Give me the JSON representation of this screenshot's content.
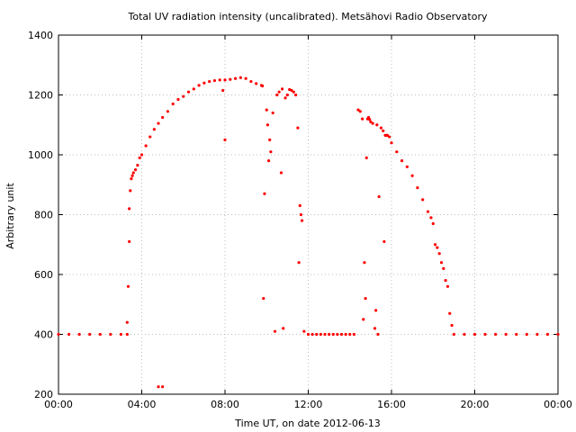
{
  "chart_data": {
    "type": "scatter",
    "title": "Total UV radiation intensity (uncalibrated). Metsähovi Radio Observatory",
    "xlabel": "Time UT, on date 2012-06-13",
    "ylabel": "Arbitrary unit",
    "xlim": [
      0,
      24
    ],
    "ylim": [
      200,
      1400
    ],
    "x_ticks": [
      0,
      4,
      8,
      12,
      16,
      20,
      24
    ],
    "x_tick_labels": [
      "00:00",
      "04:00",
      "08:00",
      "12:00",
      "16:00",
      "20:00",
      "00:00"
    ],
    "y_ticks": [
      200,
      400,
      600,
      800,
      1000,
      1200,
      1400
    ],
    "y_tick_labels": [
      "200",
      "400",
      "600",
      "800",
      "1000",
      "1200",
      "1400"
    ],
    "grid": true,
    "marker_color": "#ff0000",
    "series": [
      {
        "x": [
          0.0,
          0.5,
          1.0,
          1.5,
          2.0,
          2.5,
          3.0,
          3.3,
          3.35,
          3.4,
          3.45,
          3.5,
          3.55,
          3.6,
          3.7,
          3.8,
          3.9,
          4.0,
          4.2,
          4.4,
          4.6,
          4.8,
          5.0,
          5.25,
          5.5,
          5.75,
          6.0,
          6.25,
          6.5,
          6.75,
          7.0,
          7.25,
          7.5,
          7.75,
          8.0,
          8.25,
          8.5,
          8.75,
          9.0,
          9.25,
          9.5,
          9.75,
          9.8,
          9.85,
          9.9,
          10.0,
          10.05,
          10.1,
          10.15,
          10.2,
          10.3,
          10.4,
          10.5,
          10.6,
          10.7,
          10.75,
          10.8,
          10.9,
          11.0,
          11.1,
          11.2,
          11.3,
          11.4,
          11.5,
          11.55,
          11.6,
          11.65,
          11.7,
          11.8,
          12.0,
          12.2,
          12.4,
          12.6,
          12.8,
          13.0,
          13.2,
          13.4,
          13.6,
          13.8,
          14.0,
          14.2,
          14.4,
          14.5,
          14.6,
          14.65,
          14.7,
          14.75,
          14.8,
          14.85,
          14.9,
          14.95,
          15.0,
          15.1,
          15.2,
          15.25,
          15.3,
          15.35,
          15.4,
          15.5,
          15.6,
          15.65,
          15.7,
          15.75,
          15.8,
          15.9,
          16.0,
          16.25,
          16.5,
          16.75,
          17.0,
          17.25,
          17.5,
          17.75,
          17.9,
          18.0,
          18.1,
          18.2,
          18.3,
          18.4,
          18.5,
          18.6,
          18.7,
          18.8,
          18.9,
          19.0,
          19.5,
          20.0,
          20.5,
          21.0,
          21.5,
          22.0,
          22.5,
          23.0,
          23.5,
          24.0,
          4.8,
          5.0,
          8.0,
          7.9,
          3.4,
          3.3
        ],
        "y": [
          400,
          400,
          400,
          400,
          400,
          400,
          400,
          400,
          560,
          820,
          880,
          920,
          930,
          940,
          950,
          965,
          990,
          1000,
          1030,
          1060,
          1085,
          1105,
          1125,
          1145,
          1170,
          1185,
          1195,
          1210,
          1220,
          1232,
          1240,
          1245,
          1248,
          1250,
          1250,
          1252,
          1255,
          1258,
          1255,
          1245,
          1238,
          1232,
          1230,
          520,
          870,
          1150,
          1100,
          980,
          1050,
          1010,
          1140,
          410,
          1200,
          1210,
          940,
          1220,
          420,
          1190,
          1200,
          1218,
          1215,
          1210,
          1200,
          1090,
          640,
          830,
          800,
          780,
          410,
          400,
          400,
          400,
          400,
          400,
          400,
          400,
          400,
          400,
          400,
          400,
          400,
          1150,
          1145,
          1120,
          450,
          640,
          520,
          990,
          1120,
          1125,
          1118,
          1110,
          1105,
          420,
          480,
          1100,
          400,
          860,
          1090,
          1080,
          710,
          1065,
          1065,
          1065,
          1060,
          1040,
          1010,
          980,
          960,
          930,
          890,
          850,
          810,
          790,
          770,
          700,
          690,
          670,
          640,
          620,
          580,
          560,
          470,
          430,
          400,
          400,
          400,
          400,
          400,
          400,
          400,
          400,
          400,
          400,
          400,
          225,
          225,
          1050,
          1215,
          710,
          440
        ]
      }
    ]
  }
}
